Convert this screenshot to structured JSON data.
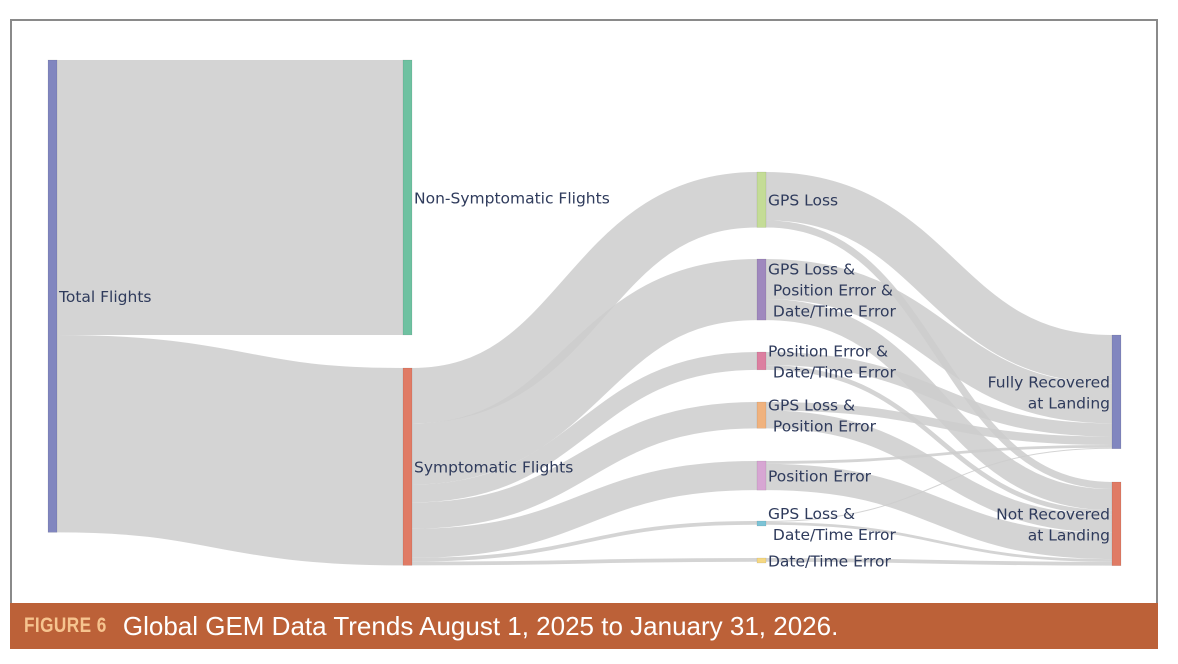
{
  "figure": {
    "label": "FIGURE 6",
    "title": "Global GEM Data Trends August 1, 2025 to January 31, 2026."
  },
  "diagram": {
    "type": "sankey",
    "link_color": "#cccccc",
    "nodes": [
      {
        "id": "total",
        "label_lines": [
          "Total Flights"
        ],
        "color": "#8186bf"
      },
      {
        "id": "nonsym",
        "label_lines": [
          "Non-Symptomatic Flights"
        ],
        "color": "#6fc1a1"
      },
      {
        "id": "sym",
        "label_lines": [
          "Symptomatic Flights"
        ],
        "color": "#e07b65"
      },
      {
        "id": "gps",
        "label_lines": [
          "GPS Loss"
        ],
        "color": "#c4dc96"
      },
      {
        "id": "gps_pos_dt",
        "label_lines": [
          "GPS Loss &",
          " Position Error &",
          " Date/Time Error"
        ],
        "color": "#9f88be"
      },
      {
        "id": "pos_dt",
        "label_lines": [
          "Position Error &",
          " Date/Time Error"
        ],
        "color": "#dc7fa0"
      },
      {
        "id": "gps_pos",
        "label_lines": [
          "GPS Loss &",
          " Position Error"
        ],
        "color": "#f0b27e"
      },
      {
        "id": "pos",
        "label_lines": [
          "Position Error"
        ],
        "color": "#d7a6d3"
      },
      {
        "id": "gps_dt",
        "label_lines": [
          "GPS Loss &",
          " Date/Time Error"
        ],
        "color": "#7cc3d6"
      },
      {
        "id": "dt",
        "label_lines": [
          "Date/Time Error"
        ],
        "color": "#f5d883"
      },
      {
        "id": "full",
        "label_lines": [
          "Fully Recovered",
          "at Landing"
        ],
        "color": "#8186bf"
      },
      {
        "id": "notrec",
        "label_lines": [
          "Not Recovered",
          "at Landing"
        ],
        "color": "#e07b65"
      }
    ],
    "links": [
      {
        "source": "total",
        "target": "nonsym",
        "value": 58.5
      },
      {
        "source": "total",
        "target": "sym",
        "value": 42.0
      },
      {
        "source": "sym",
        "target": "gps",
        "value": 11.8
      },
      {
        "source": "sym",
        "target": "gps_pos_dt",
        "value": 13.0
      },
      {
        "source": "sym",
        "target": "pos_dt",
        "value": 3.8
      },
      {
        "source": "sym",
        "target": "gps_pos",
        "value": 5.6
      },
      {
        "source": "sym",
        "target": "pos",
        "value": 6.2
      },
      {
        "source": "sym",
        "target": "gps_dt",
        "value": 0.8
      },
      {
        "source": "sym",
        "target": "dt",
        "value": 0.8
      },
      {
        "source": "gps",
        "target": "full",
        "value": 10.3
      },
      {
        "source": "gps",
        "target": "notrec",
        "value": 1.5
      },
      {
        "source": "gps_pos_dt",
        "target": "full",
        "value": 8.5
      },
      {
        "source": "gps_pos_dt",
        "target": "notrec",
        "value": 4.5
      },
      {
        "source": "pos_dt",
        "target": "full",
        "value": 2.8
      },
      {
        "source": "pos_dt",
        "target": "notrec",
        "value": 1.0
      },
      {
        "source": "gps_pos",
        "target": "full",
        "value": 1.8
      },
      {
        "source": "gps_pos",
        "target": "notrec",
        "value": 3.8
      },
      {
        "source": "pos",
        "target": "full",
        "value": 0.6
      },
      {
        "source": "pos",
        "target": "notrec",
        "value": 5.6
      },
      {
        "source": "gps_dt",
        "target": "full",
        "value": 0.2
      },
      {
        "source": "gps_dt",
        "target": "notrec",
        "value": 0.6
      },
      {
        "source": "dt",
        "target": "notrec",
        "value": 0.8
      }
    ]
  }
}
